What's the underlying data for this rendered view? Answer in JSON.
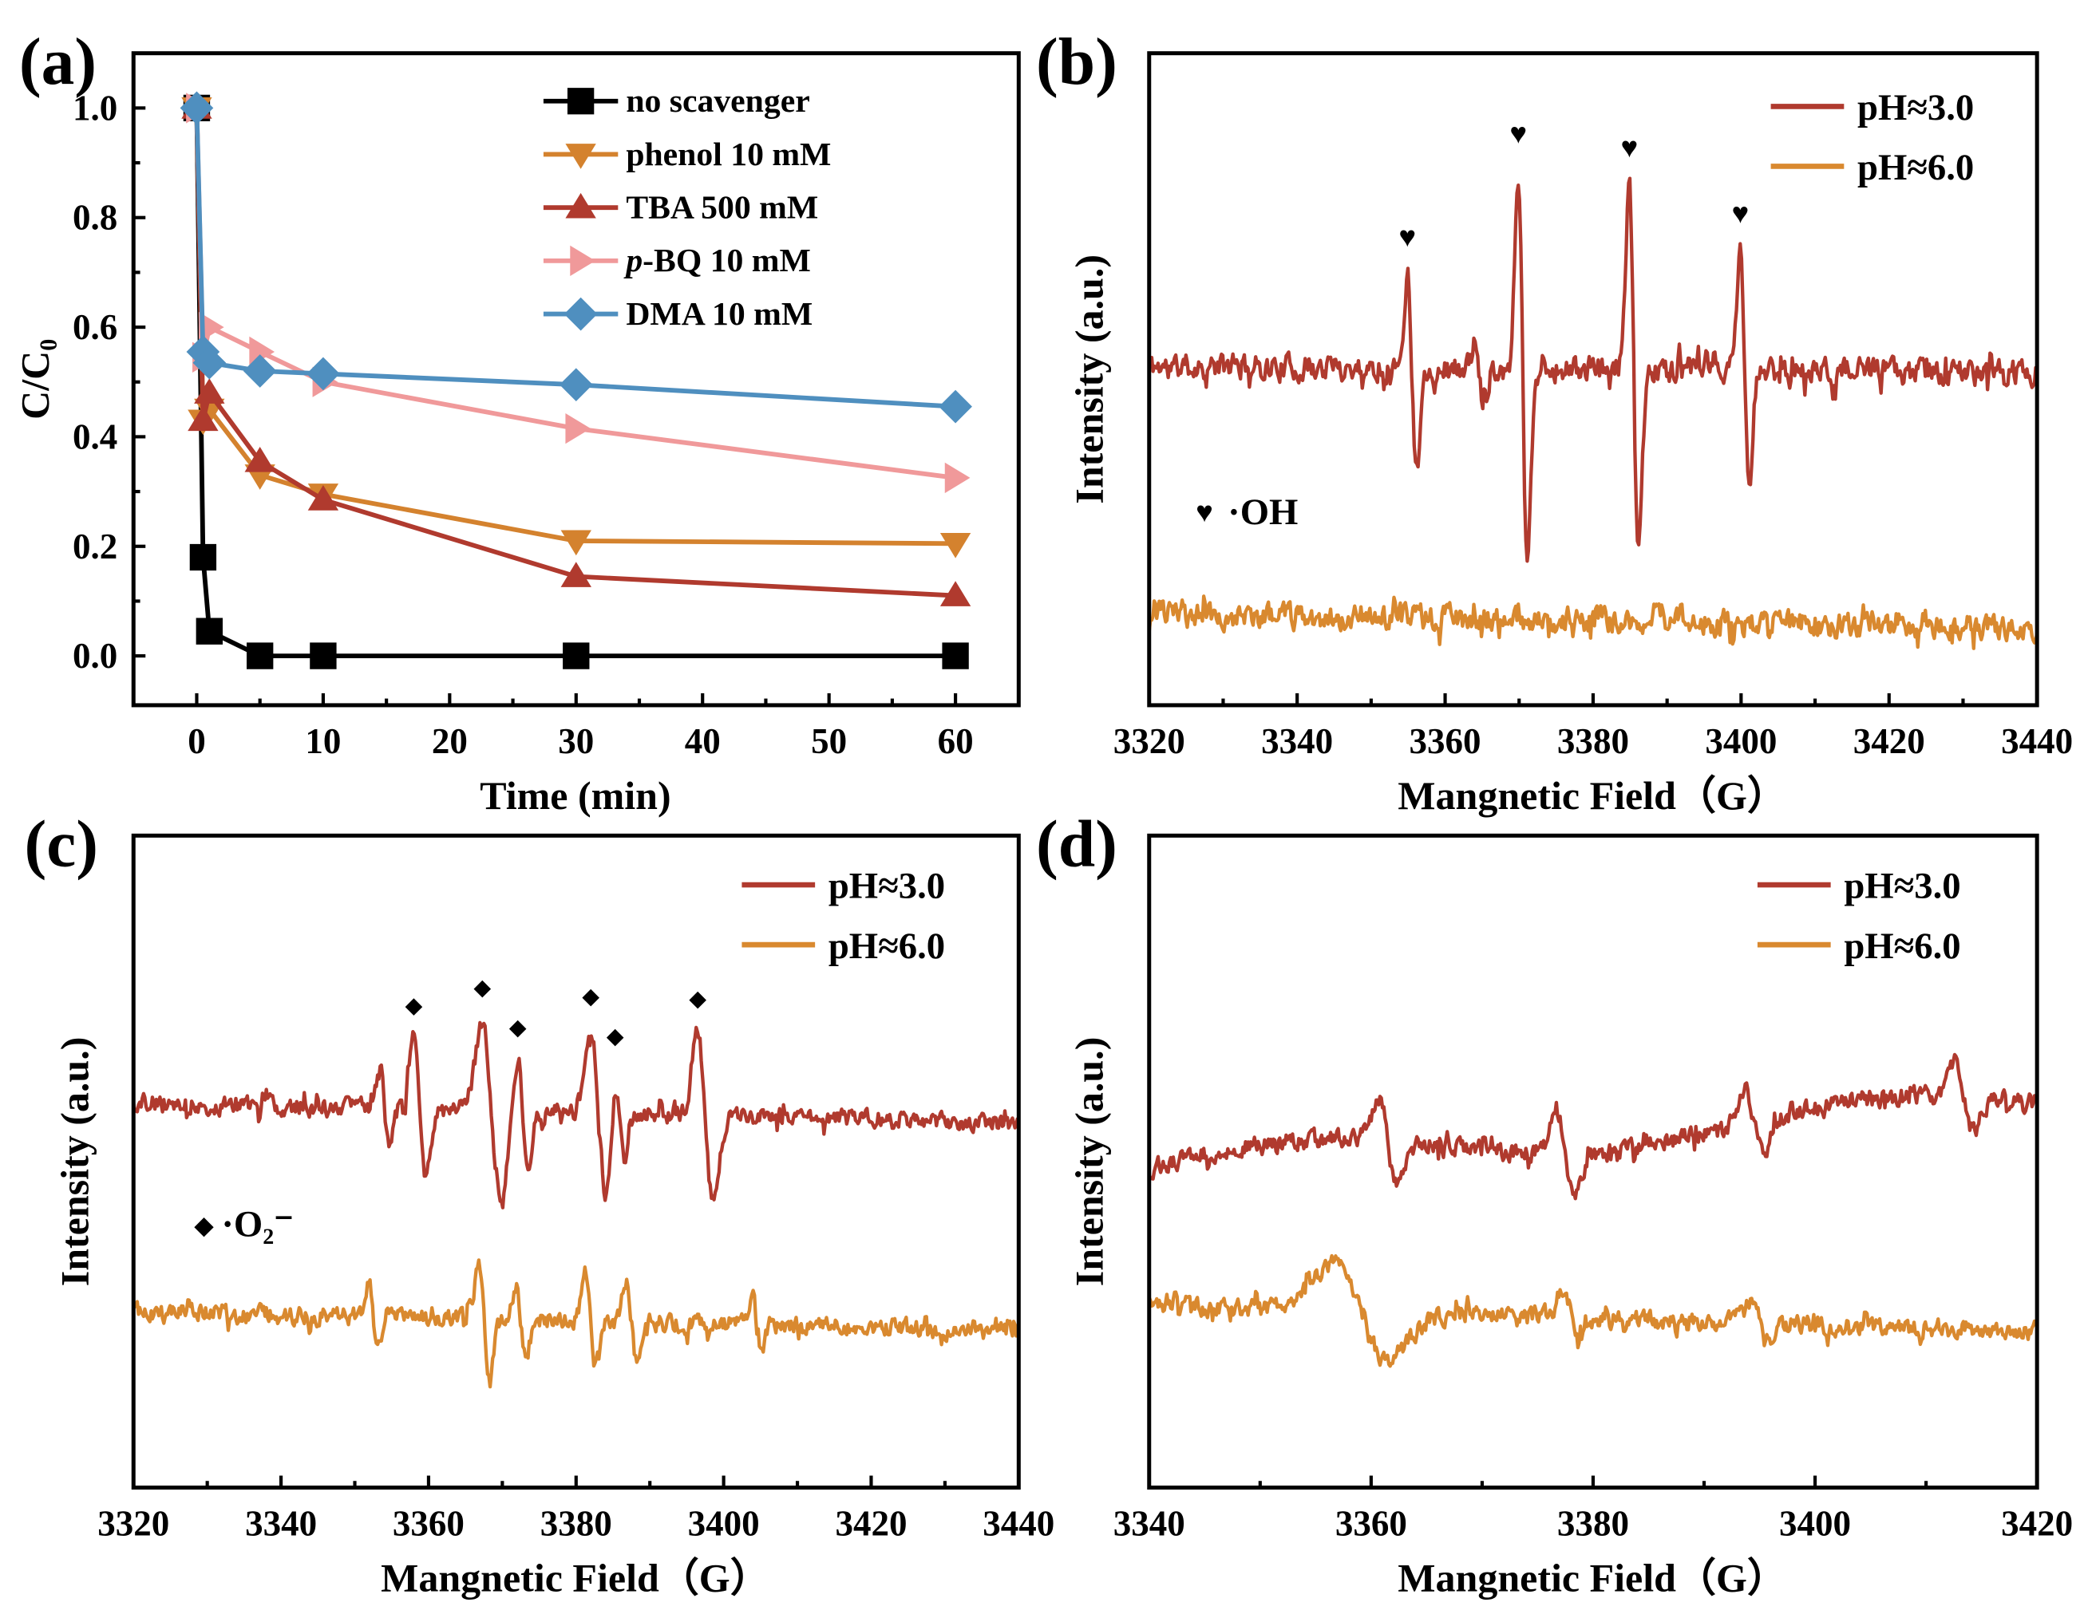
{
  "chart_data": [
    {
      "panel": "(a)",
      "type": "line",
      "xlabel": "Time (min)",
      "ylabel": "C/C₀",
      "xlim": [
        -5,
        65
      ],
      "ylim": [
        -0.09,
        1.1
      ],
      "xticks": [
        0,
        10,
        20,
        30,
        40,
        50,
        60
      ],
      "xtick_labels": [
        "0",
        "10",
        "20",
        "30",
        "40",
        "50",
        "60"
      ],
      "yticks": [
        0.0,
        0.2,
        0.4,
        0.6,
        0.8,
        1.0
      ],
      "ytick_labels": [
        "0.0",
        "0.2",
        "0.4",
        "0.6",
        "0.8",
        "1.0"
      ],
      "legend_position": "top-right",
      "grid": false,
      "series": [
        {
          "name": "no scavenger",
          "color": "#000000",
          "marker": "square",
          "x": [
            0,
            0.5,
            1,
            5,
            10,
            30,
            60
          ],
          "y": [
            1.0,
            0.18,
            0.045,
            0.0,
            0.0,
            0.0,
            0.0
          ]
        },
        {
          "name": "phenol 10 mM",
          "color": "#d4822e",
          "marker": "triangle-down",
          "x": [
            0,
            0.5,
            1,
            5,
            10,
            30,
            60
          ],
          "y": [
            1.0,
            0.43,
            0.45,
            0.33,
            0.295,
            0.21,
            0.205
          ]
        },
        {
          "name": "TBA 500 mM",
          "color": "#b03a2e",
          "marker": "triangle-up",
          "x": [
            0,
            0.5,
            1,
            5,
            10,
            30,
            60
          ],
          "y": [
            1.0,
            0.43,
            0.48,
            0.355,
            0.285,
            0.145,
            0.11
          ]
        },
        {
          "name": "p-BQ 10 mM",
          "color": "#f0999a",
          "marker": "triangle-right",
          "x": [
            0,
            0.5,
            1,
            5,
            10,
            30,
            60
          ],
          "y": [
            1.0,
            0.545,
            0.6,
            0.555,
            0.5,
            0.415,
            0.325
          ]
        },
        {
          "name": "DMA 10 mM",
          "color": "#4f8fbf",
          "marker": "diamond",
          "x": [
            0,
            0.5,
            1,
            5,
            10,
            30,
            60
          ],
          "y": [
            1.0,
            0.555,
            0.535,
            0.52,
            0.515,
            0.495,
            0.455
          ]
        }
      ]
    },
    {
      "panel": "(b)",
      "type": "line",
      "xlabel": "Mangnetic Field（G）",
      "ylabel": "Intensity (a.u.)",
      "xlim": [
        3320,
        3440
      ],
      "ylim": [
        0,
        100
      ],
      "xticks": [
        3320,
        3340,
        3360,
        3380,
        3400,
        3420,
        3440
      ],
      "xtick_labels": [
        "3320",
        "3340",
        "3360",
        "3380",
        "3400",
        "3420",
        "3440"
      ],
      "legend_position": "top-right",
      "annotation": {
        "symbol": "♥",
        "text": "·OH"
      },
      "series": [
        {
          "name": "pH≈3.0",
          "color": "#b03a2e",
          "baseline": [
            52,
            51
          ],
          "noise": 3.0,
          "seed": 11,
          "lines": [
            {
              "center": 3355.5,
              "amp": 14,
              "width": 0.6,
              "mark": true
            },
            {
              "center": 3364.5,
              "amp": 4,
              "width": 0.5,
              "mark": false
            },
            {
              "center": 3370.5,
              "amp": 30,
              "width": 0.6,
              "mark": true
            },
            {
              "center": 3385.5,
              "amp": 28,
              "width": 0.6,
              "mark": true
            },
            {
              "center": 3400.5,
              "amp": 18,
              "width": 0.6,
              "mark": true
            }
          ]
        },
        {
          "name": "pH≈6.0",
          "color": "#d9892f",
          "baseline": [
            14,
            12
          ],
          "noise": 3.0,
          "seed": 23,
          "lines": []
        }
      ]
    },
    {
      "panel": "(c)",
      "type": "line",
      "xlabel": "Mangnetic Field（G）",
      "ylabel": "Intensity (a.u.)",
      "xlim": [
        3320,
        3440
      ],
      "ylim": [
        0,
        100
      ],
      "xticks": [
        3320,
        3340,
        3360,
        3380,
        3400,
        3420,
        3440
      ],
      "xtick_labels": [
        "3320",
        "3340",
        "3360",
        "3380",
        "3400",
        "3420",
        "3440"
      ],
      "legend_position": "top-right",
      "annotation": {
        "symbol": "◆",
        "text": "·O₂⁻"
      },
      "series": [
        {
          "name": "pH≈3.0",
          "color": "#b03a2e",
          "baseline": [
            59,
            56
          ],
          "noise": 2.2,
          "seed": 37,
          "lines": [
            {
              "center": 3354,
              "amp": 6,
              "width": 0.6,
              "mark": false
            },
            {
              "center": 3358.8,
              "amp": 11,
              "width": 0.8,
              "mark": true
            },
            {
              "center": 3368.5,
              "amp": 14,
              "width": 1.2,
              "mark": true
            },
            {
              "center": 3372.8,
              "amp": 8,
              "width": 0.7,
              "mark": true
            },
            {
              "center": 3383,
              "amp": 13,
              "width": 1.0,
              "mark": true
            },
            {
              "center": 3386,
              "amp": 7,
              "width": 0.7,
              "mark": true
            },
            {
              "center": 3397.5,
              "amp": 13,
              "width": 1.0,
              "mark": true
            }
          ]
        },
        {
          "name": "pH≈6.0",
          "color": "#d9892f",
          "baseline": [
            27,
            24
          ],
          "noise": 2.2,
          "seed": 41,
          "lines": [
            {
              "center": 3352.5,
              "amp": 6,
              "width": 0.6,
              "mark": false
            },
            {
              "center": 3367.5,
              "amp": 8,
              "width": 0.7,
              "mark": false
            },
            {
              "center": 3372.5,
              "amp": 5,
              "width": 0.7,
              "mark": false
            },
            {
              "center": 3382,
              "amp": 7,
              "width": 0.7,
              "mark": false
            },
            {
              "center": 3387.5,
              "amp": 6,
              "width": 0.7,
              "mark": false
            },
            {
              "center": 3404.5,
              "amp": 4,
              "width": 0.6,
              "mark": false
            }
          ]
        }
      ]
    },
    {
      "panel": "(d)",
      "type": "line",
      "xlabel": "Mangnetic Field（G）",
      "ylabel": "Intensity (a.u.)",
      "xlim": [
        3340,
        3420
      ],
      "ylim": [
        0,
        100
      ],
      "xticks": [
        3340,
        3360,
        3380,
        3400,
        3420
      ],
      "xtick_labels": [
        "3340",
        "3360",
        "3380",
        "3400",
        "3420"
      ],
      "legend_position": "top-right",
      "series": [
        {
          "name": "pH≈3.0",
          "color": "#b03a2e",
          "baseline": [
            49,
            59
          ],
          "noise": 2.2,
          "seed": 53,
          "lines": [
            {
              "center": 3361.5,
              "amp": 6,
              "width": 0.8,
              "mark": false
            },
            {
              "center": 3377.5,
              "amp": 6,
              "width": 0.8,
              "mark": false
            },
            {
              "center": 3394.5,
              "amp": 5,
              "width": 0.8,
              "mark": false
            },
            {
              "center": 3413.5,
              "amp": 5,
              "width": 0.8,
              "mark": false
            }
          ]
        },
        {
          "name": "pH≈6.0",
          "color": "#d9892f",
          "baseline": [
            28,
            24
          ],
          "noise": 2.2,
          "seed": 67,
          "lines": [
            {
              "center": 3359,
              "amp": 7,
              "width": 2.5,
              "mark": false
            },
            {
              "center": 3378,
              "amp": 3,
              "width": 0.8,
              "mark": false
            },
            {
              "center": 3395,
              "amp": 3,
              "width": 0.8,
              "mark": false
            }
          ]
        }
      ]
    }
  ]
}
